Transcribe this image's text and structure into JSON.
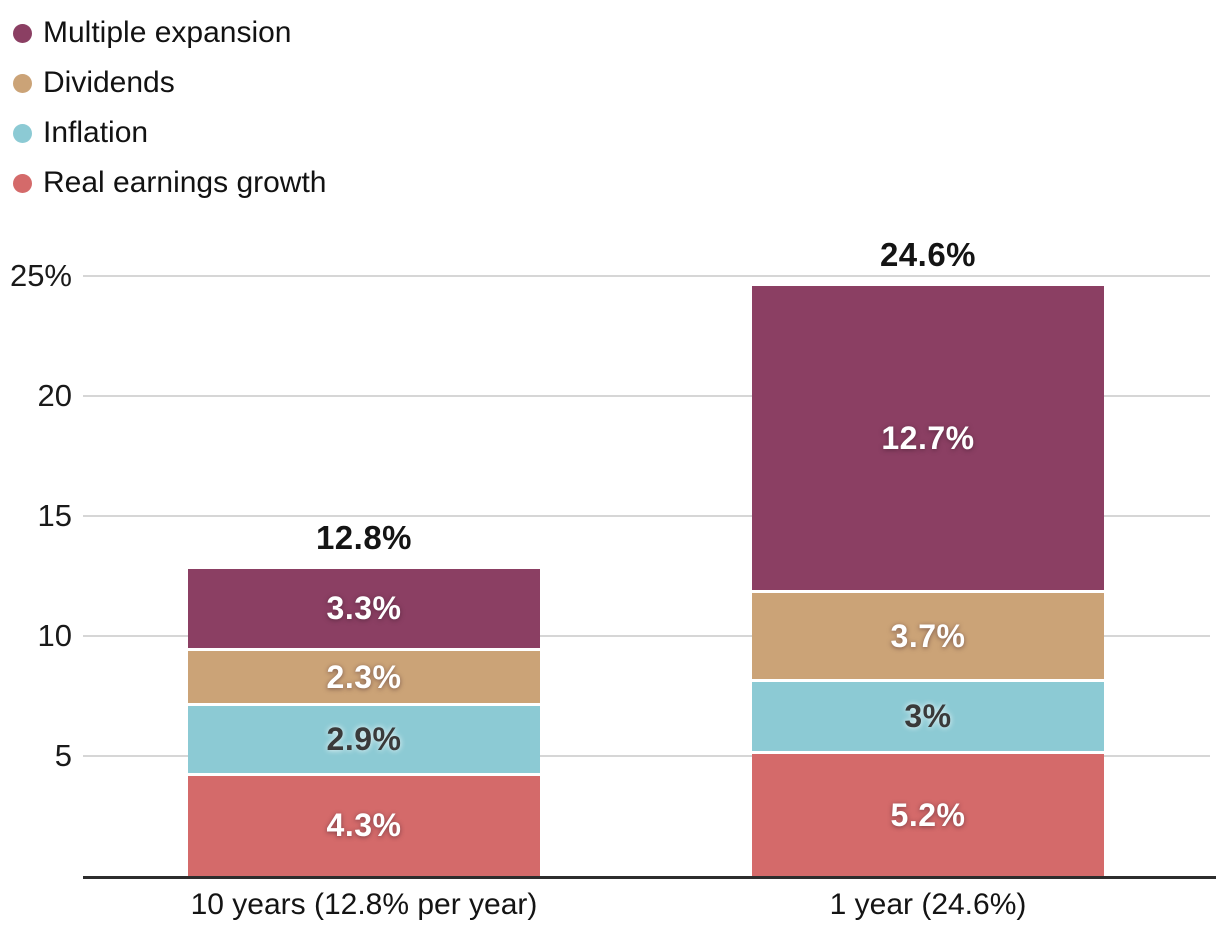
{
  "chart_data": {
    "type": "bar",
    "subtype": "stacked",
    "unit": "%",
    "categories": [
      "10 years (12.8% per year)",
      "1 year (24.6%)"
    ],
    "totals": [
      "12.8%",
      "24.6%"
    ],
    "total_values": [
      12.8,
      24.6
    ],
    "series": [
      {
        "name": "Real earnings growth",
        "color": "#d46a6a",
        "values": [
          4.3,
          5.2
        ],
        "labels": [
          "4.3%",
          "5.2%"
        ],
        "label_style": "light"
      },
      {
        "name": "Inflation",
        "color": "#8ccad4",
        "values": [
          2.9,
          3.0
        ],
        "labels": [
          "2.9%",
          "3%"
        ],
        "label_style": "dark"
      },
      {
        "name": "Dividends",
        "color": "#cba377",
        "values": [
          2.3,
          3.7
        ],
        "labels": [
          "2.3%",
          "3.7%"
        ],
        "label_style": "light"
      },
      {
        "name": "Multiple expansion",
        "color": "#8b3f63",
        "values": [
          3.3,
          12.7
        ],
        "labels": [
          "3.3%",
          "12.7%"
        ],
        "label_style": "light"
      }
    ],
    "legend": [
      "Multiple expansion",
      "Dividends",
      "Inflation",
      "Real earnings growth"
    ],
    "y_axis": {
      "ticks": [
        "25%",
        "20",
        "15",
        "10",
        "5"
      ],
      "tick_values": [
        25,
        20,
        15,
        10,
        5
      ],
      "range": [
        0,
        25.6
      ],
      "grid": true
    },
    "legend_position": "top-left"
  }
}
